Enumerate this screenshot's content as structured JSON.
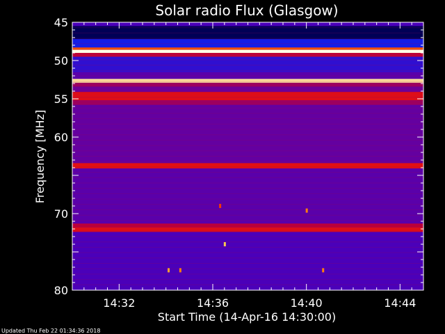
{
  "chart_data": {
    "type": "heatmap",
    "title": "Solar radio Flux (Glasgow)",
    "ylabel": "Frequency [MHz]",
    "xlabel": "Start Time (14-Apr-16 14:30:00)",
    "ylim": [
      45,
      80
    ],
    "y_inverted": true,
    "y_ticks": [
      45,
      50,
      55,
      60,
      65,
      70,
      75,
      80
    ],
    "y_tick_labels": [
      "45",
      "50",
      "55",
      "60",
      "",
      "70",
      "",
      "80"
    ],
    "x_ticks": [
      "14:32",
      "14:36",
      "14:40",
      "14:44"
    ],
    "x_range_minutes": [
      0,
      15
    ],
    "x_tick_minutes": [
      2,
      6,
      10,
      14
    ],
    "colormap": "hot-on-blue",
    "bands": [
      {
        "freq_from": 45.0,
        "freq_to": 45.5,
        "level": 0.35
      },
      {
        "freq_from": 45.5,
        "freq_to": 47.2,
        "level": 0.05
      },
      {
        "freq_from": 47.2,
        "freq_to": 48.3,
        "level": 0.25
      },
      {
        "freq_from": 48.3,
        "freq_to": 48.6,
        "level": 0.75
      },
      {
        "freq_from": 48.6,
        "freq_to": 49.0,
        "level": 1.0
      },
      {
        "freq_from": 49.0,
        "freq_to": 49.5,
        "level": 0.55
      },
      {
        "freq_from": 49.5,
        "freq_to": 51.5,
        "level": 0.3
      },
      {
        "freq_from": 51.5,
        "freq_to": 52.4,
        "level": 0.38
      },
      {
        "freq_from": 52.4,
        "freq_to": 52.9,
        "level": 0.95
      },
      {
        "freq_from": 52.9,
        "freq_to": 53.4,
        "level": 0.5
      },
      {
        "freq_from": 53.4,
        "freq_to": 54.1,
        "level": 0.42
      },
      {
        "freq_from": 54.1,
        "freq_to": 55.2,
        "level": 0.62
      },
      {
        "freq_from": 55.2,
        "freq_to": 55.8,
        "level": 0.5
      },
      {
        "freq_from": 55.8,
        "freq_to": 63.4,
        "level": 0.4
      },
      {
        "freq_from": 63.4,
        "freq_to": 64.1,
        "level": 0.63
      },
      {
        "freq_from": 64.1,
        "freq_to": 71.3,
        "level": 0.38
      },
      {
        "freq_from": 71.3,
        "freq_to": 71.8,
        "level": 0.55
      },
      {
        "freq_from": 71.8,
        "freq_to": 72.4,
        "level": 0.62
      },
      {
        "freq_from": 72.4,
        "freq_to": 80.0,
        "level": 0.35
      }
    ],
    "bursts": [
      {
        "minute": 6.5,
        "freq": 74.0,
        "level": 0.9
      },
      {
        "minute": 4.1,
        "freq": 77.4,
        "level": 0.85
      },
      {
        "minute": 4.6,
        "freq": 77.4,
        "level": 0.8
      },
      {
        "minute": 10.0,
        "freq": 69.6,
        "level": 0.8
      },
      {
        "minute": 10.7,
        "freq": 77.4,
        "level": 0.8
      },
      {
        "minute": 6.3,
        "freq": 69.0,
        "level": 0.7
      }
    ]
  },
  "footer": {
    "updated": "Updated Thu Feb 22 01:34:36 2018"
  },
  "colors": {
    "background": "#000000",
    "axis": "#ffffff"
  }
}
